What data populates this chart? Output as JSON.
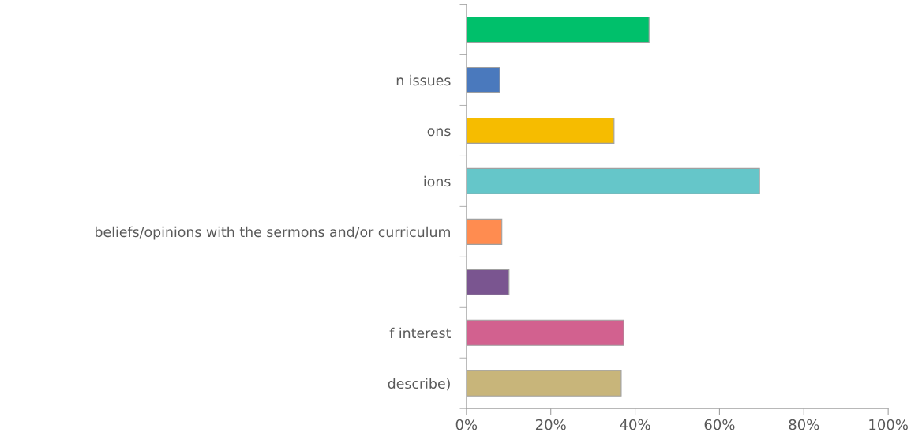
{
  "chart_data": {
    "type": "bar",
    "orientation": "horizontal",
    "categories": [
      null,
      "n issues",
      "ons",
      "ions",
      "beliefs/opinions with the sermons and/or curriculum",
      null,
      "f interest",
      "describe)"
    ],
    "values": [
      43.3,
      7.9,
      35.0,
      69.5,
      8.4,
      10.1,
      37.3,
      36.7
    ],
    "colors": [
      "#00c06b",
      "#4a79bd",
      "#f6bc00",
      "#65c6c9",
      "#ff8c50",
      "#7a5590",
      "#d2618f",
      "#c8b57a"
    ],
    "xlim": [
      0,
      100
    ],
    "xticks": [
      {
        "value": 0,
        "label": "0%"
      },
      {
        "value": 20,
        "label": "20%"
      },
      {
        "value": 40,
        "label": "40%"
      },
      {
        "value": 60,
        "label": "60%"
      },
      {
        "value": 80,
        "label": "80%"
      },
      {
        "value": 100,
        "label": "100%"
      }
    ],
    "grid": false,
    "legend": false
  }
}
